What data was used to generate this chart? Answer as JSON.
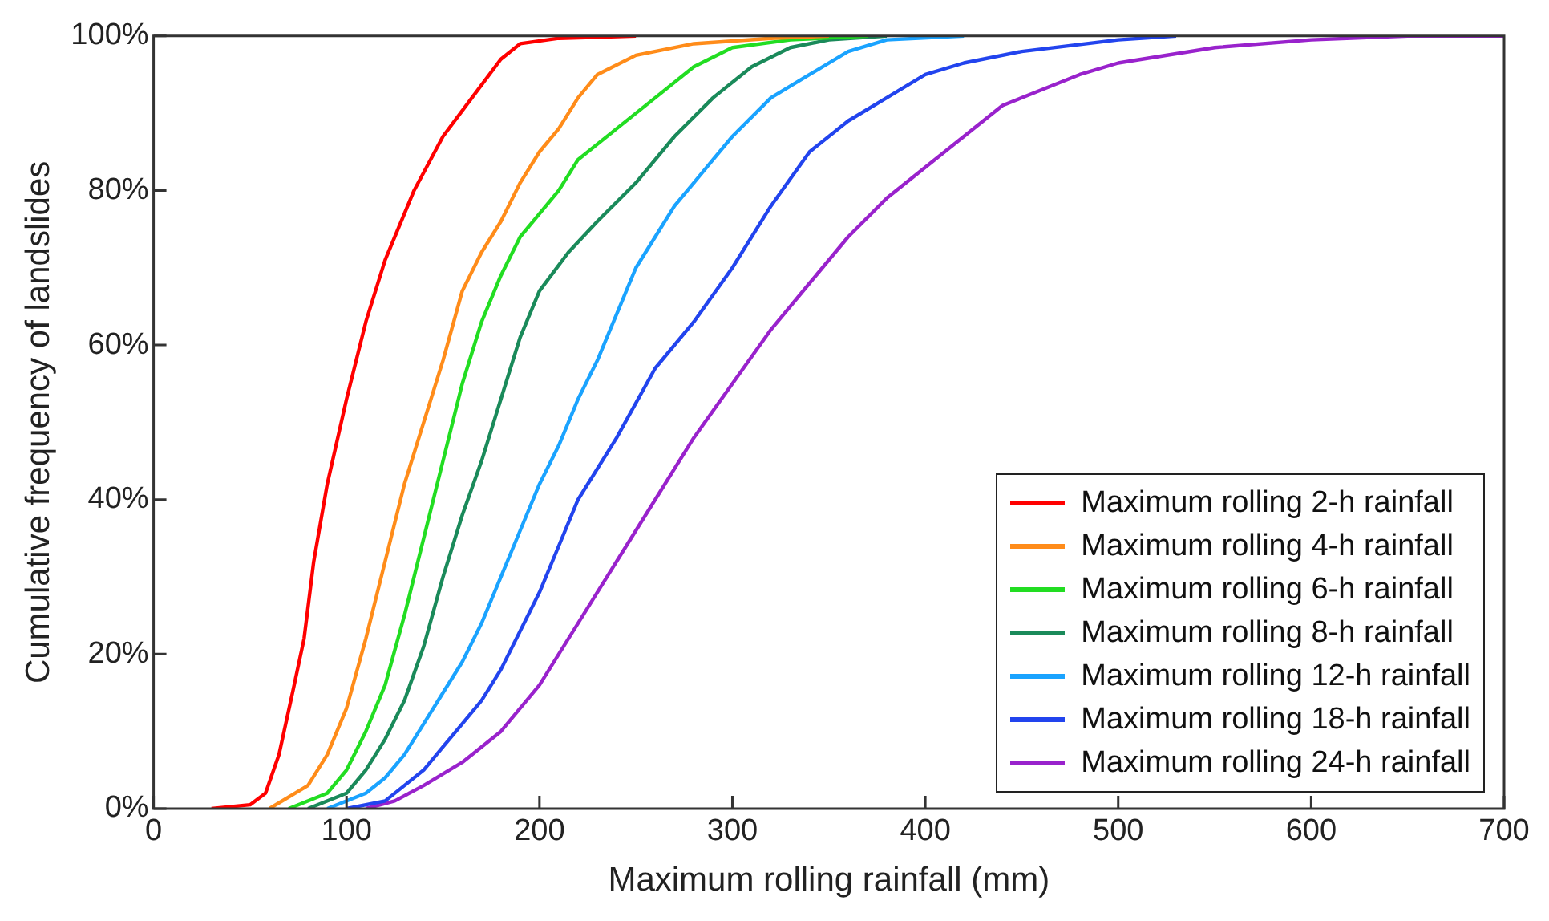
{
  "chart_data": {
    "type": "line",
    "xlabel": "Maximum rolling rainfall (mm)",
    "ylabel": "Cumulative frequency of landslides",
    "xlim": [
      0,
      700
    ],
    "xticks": [
      0,
      100,
      200,
      300,
      400,
      500,
      600,
      700
    ],
    "ylim": [
      0,
      100
    ],
    "yticks": [
      {
        "value": 0,
        "label": "0%"
      },
      {
        "value": 20,
        "label": "20%"
      },
      {
        "value": 40,
        "label": "40%"
      },
      {
        "value": 60,
        "label": "60%"
      },
      {
        "value": 80,
        "label": "80%"
      },
      {
        "value": 100,
        "label": "100%"
      }
    ],
    "grid": false,
    "legend": "bottom right",
    "marker": "none",
    "line_style": "solid",
    "series": [
      {
        "name": "Maximum rolling 2-h rainfall",
        "color": "#ff0000",
        "x": [
          30,
          50,
          58,
          65,
          72,
          78,
          83,
          90,
          100,
          110,
          120,
          135,
          150,
          165,
          180,
          190,
          210,
          250
        ],
        "values": [
          0,
          0.5,
          2,
          7,
          15,
          22,
          32,
          42,
          53,
          63,
          71,
          80,
          87,
          92,
          97,
          99,
          99.7,
          100
        ]
      },
      {
        "name": "Maximum rolling 4-h rainfall",
        "color": "#ff8c1a",
        "x": [
          60,
          80,
          90,
          100,
          110,
          120,
          130,
          140,
          150,
          160,
          170,
          180,
          190,
          200,
          210,
          220,
          230,
          250,
          280,
          320,
          350
        ],
        "values": [
          0,
          3,
          7,
          13,
          22,
          32,
          42,
          50,
          58,
          67,
          72,
          76,
          81,
          85,
          88,
          92,
          95,
          97.5,
          99,
          99.7,
          100
        ]
      },
      {
        "name": "Maximum rolling 6-h rainfall",
        "color": "#22dd22",
        "x": [
          70,
          90,
          100,
          110,
          120,
          130,
          140,
          150,
          160,
          170,
          180,
          190,
          200,
          210,
          220,
          240,
          260,
          280,
          300,
          330,
          370
        ],
        "values": [
          0,
          2,
          5,
          10,
          16,
          25,
          35,
          45,
          55,
          63,
          69,
          74,
          77,
          80,
          84,
          88,
          92,
          96,
          98.5,
          99.5,
          100
        ]
      },
      {
        "name": "Maximum rolling 8-h rainfall",
        "color": "#1a8a5a",
        "x": [
          80,
          100,
          110,
          120,
          130,
          140,
          150,
          160,
          170,
          180,
          190,
          200,
          215,
          230,
          250,
          270,
          290,
          310,
          330,
          350,
          380
        ],
        "values": [
          0,
          2,
          5,
          9,
          14,
          21,
          30,
          38,
          45,
          53,
          61,
          67,
          72,
          76,
          81,
          87,
          92,
          96,
          98.5,
          99.5,
          100
        ]
      },
      {
        "name": "Maximum rolling 12-h rainfall",
        "color": "#1aa3ff",
        "x": [
          90,
          110,
          120,
          130,
          140,
          150,
          160,
          170,
          180,
          190,
          200,
          210,
          220,
          230,
          240,
          250,
          260,
          270,
          280,
          290,
          300,
          320,
          340,
          360,
          380,
          420
        ],
        "values": [
          0,
          2,
          4,
          7,
          11,
          15,
          19,
          24,
          30,
          36,
          42,
          47,
          53,
          58,
          64,
          70,
          74,
          78,
          81,
          84,
          87,
          92,
          95,
          98,
          99.5,
          100
        ]
      },
      {
        "name": "Maximum rolling 18-h rainfall",
        "color": "#2244ee",
        "x": [
          100,
          120,
          130,
          140,
          150,
          160,
          170,
          180,
          190,
          200,
          210,
          220,
          240,
          260,
          280,
          300,
          320,
          340,
          360,
          380,
          400,
          420,
          450,
          500,
          530
        ],
        "values": [
          0,
          1,
          3,
          5,
          8,
          11,
          14,
          18,
          23,
          28,
          34,
          40,
          48,
          57,
          63,
          70,
          78,
          85,
          89,
          92,
          95,
          96.5,
          98,
          99.5,
          100
        ]
      },
      {
        "name": "Maximum rolling 24-h rainfall",
        "color": "#9922cc",
        "x": [
          110,
          125,
          140,
          160,
          180,
          200,
          220,
          240,
          260,
          280,
          300,
          320,
          340,
          360,
          380,
          400,
          420,
          440,
          460,
          480,
          500,
          550,
          600,
          650,
          700
        ],
        "values": [
          0,
          1,
          3,
          6,
          10,
          16,
          24,
          32,
          40,
          48,
          55,
          62,
          68,
          74,
          79,
          83,
          87,
          91,
          93,
          95,
          96.5,
          98.5,
          99.5,
          100,
          100
        ]
      }
    ]
  }
}
